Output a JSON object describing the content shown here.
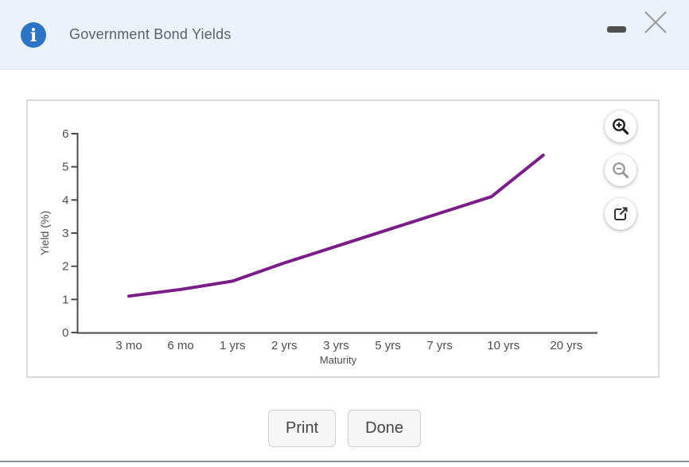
{
  "header": {
    "title": "Government Bond Yields"
  },
  "icons": {
    "header_info": "info-icon",
    "minimize": "minimize-icon",
    "close": "close-icon",
    "zoom_in": "zoom-in-icon",
    "zoom_out": "zoom-out-icon",
    "open_external": "open-external-icon"
  },
  "colors": {
    "header_background": "#ebf2fa",
    "info_blue": "#2d74c4",
    "line_purple": "#7a1e87",
    "axis_gray": "#4a4a4a",
    "tick_text_gray": "#4d4d4d"
  },
  "chart_data": {
    "type": "line",
    "title": "Government Bond Yields",
    "categories": [
      "3 mo",
      "6 mo",
      "1 yrs",
      "2 yrs",
      "3 yrs",
      "5 yrs",
      "7 yrs",
      "10 yrs",
      "20 yrs"
    ],
    "values": [
      1.1,
      1.3,
      1.55,
      2.1,
      2.6,
      3.1,
      3.6,
      4.1,
      5.35
    ],
    "xlabel": "Maturity",
    "ylabel": "Yield (%)",
    "ylim": [
      0,
      6
    ],
    "yticks": [
      0,
      1,
      2,
      3,
      4,
      5,
      6
    ],
    "line_color": "#7a1e87",
    "grid": false,
    "legend": false
  },
  "footer": {
    "print_label": "Print",
    "done_label": "Done"
  }
}
